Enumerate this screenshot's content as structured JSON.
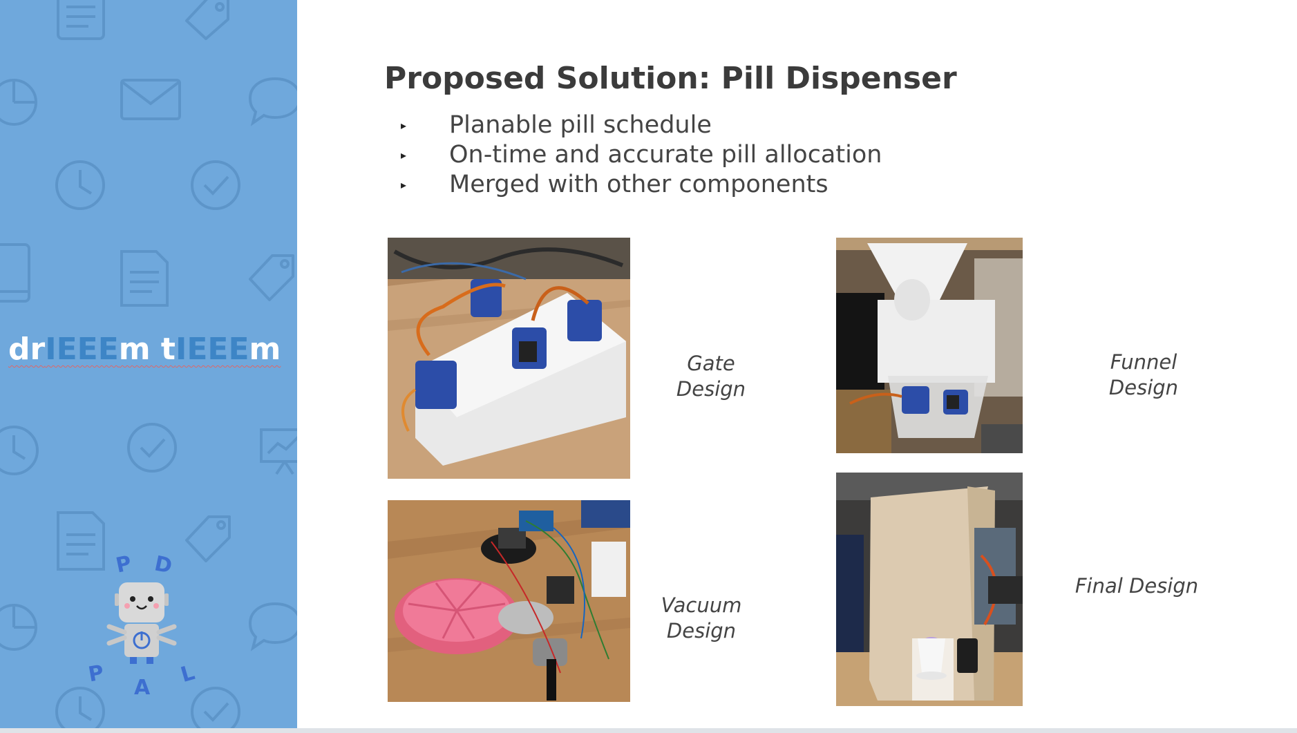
{
  "sidebar": {
    "team_name_parts": [
      "dr",
      "IEEE",
      "m t",
      "IEEE",
      "m"
    ],
    "logo_letters": [
      "P",
      "D",
      "P",
      "A",
      "L"
    ],
    "background_color": "#6fa8dc",
    "highlight_color": "#3d85c6",
    "background_icons": [
      "document-icon",
      "tag-icon",
      "pie-chart-icon",
      "envelope-icon",
      "speech-bubble-icon",
      "clock-icon",
      "checkmark-icon",
      "tablet-icon",
      "presentation-icon"
    ]
  },
  "slide": {
    "title": "Proposed Solution: Pill Dispenser",
    "bullets": [
      "Planable pill schedule",
      "On-time and accurate pill allocation",
      "Merged with other components"
    ],
    "designs": [
      {
        "caption_line1": "Gate",
        "caption_line2": "Design"
      },
      {
        "caption_line1": "Funnel",
        "caption_line2": "Design"
      },
      {
        "caption_line1": "Vacuum",
        "caption_line2": "Design"
      },
      {
        "caption_line1": "Final Design",
        "caption_line2": ""
      }
    ]
  }
}
